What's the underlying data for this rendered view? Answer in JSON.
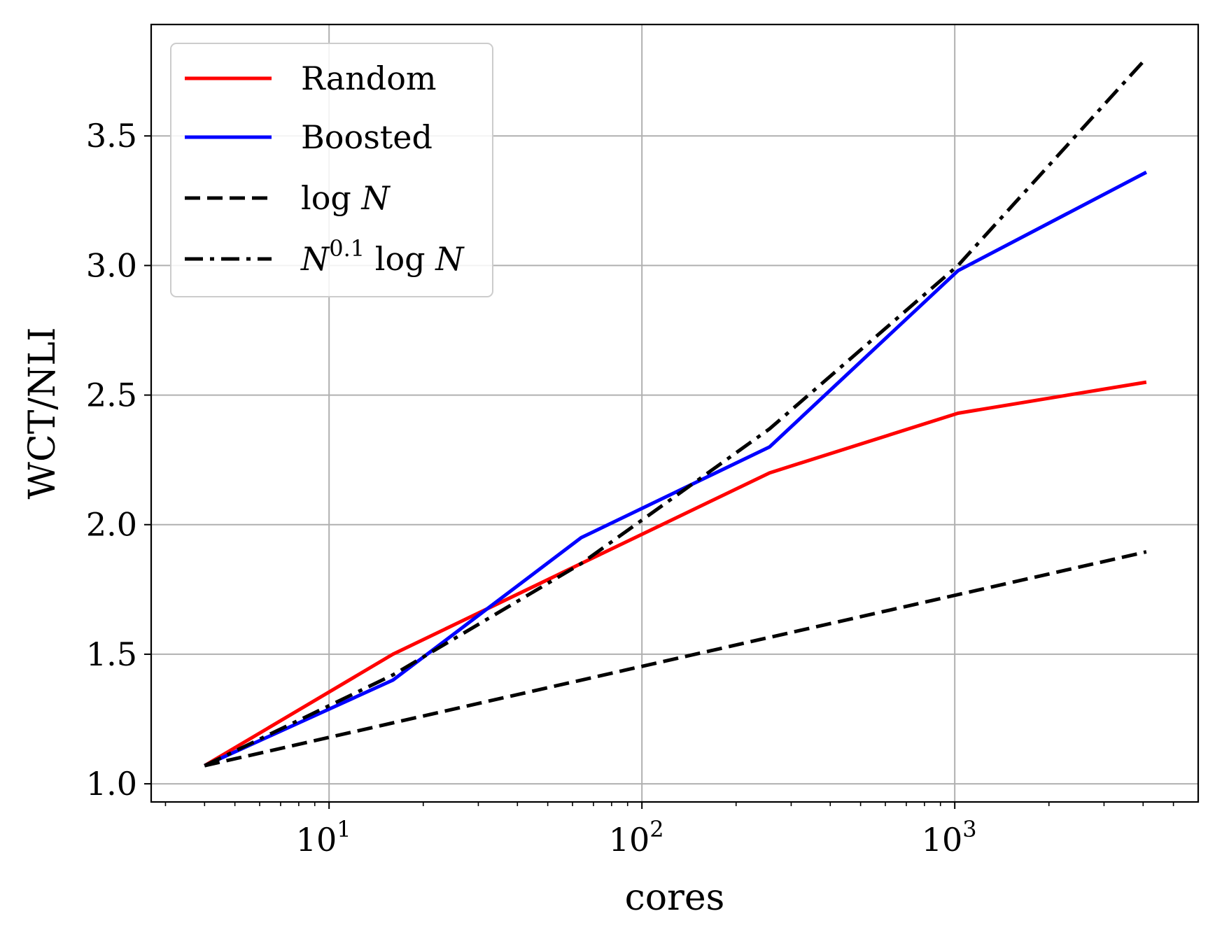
{
  "chart_data": {
    "type": "line",
    "x_scale": "log",
    "xlabel": "cores",
    "ylabel": "WCT/NLI",
    "xlim": [
      2.7,
      6000
    ],
    "ylim": [
      0.93,
      3.93
    ],
    "grid": true,
    "legend_position": "top-left",
    "y_ticks": [
      1.0,
      1.5,
      2.0,
      2.5,
      3.0,
      3.5
    ],
    "y_tick_labels": [
      "1.0",
      "1.5",
      "2.0",
      "2.5",
      "3.0",
      "3.5"
    ],
    "x_major_ticks": [
      {
        "value": 10,
        "base": "10",
        "exp": "1"
      },
      {
        "value": 100,
        "base": "10",
        "exp": "2"
      },
      {
        "value": 1000,
        "base": "10",
        "exp": "3"
      }
    ],
    "x_minor_ticks": [
      3,
      4,
      5,
      6,
      7,
      8,
      9,
      20,
      30,
      40,
      50,
      60,
      70,
      80,
      90,
      200,
      300,
      400,
      500,
      600,
      700,
      800,
      900,
      2000,
      3000,
      4000,
      5000
    ],
    "series": [
      {
        "name": "Random",
        "label_parts": [
          "Random"
        ],
        "color": "#ff0000",
        "dash": "solid",
        "x": [
          4,
          16,
          64,
          256,
          1024,
          4096
        ],
        "y": [
          1.07,
          1.5,
          1.85,
          2.2,
          2.43,
          2.55
        ]
      },
      {
        "name": "Boosted",
        "label_parts": [
          "Boosted"
        ],
        "color": "#0000ff",
        "dash": "solid",
        "x": [
          4,
          16,
          64,
          256,
          1024,
          4096
        ],
        "y": [
          1.07,
          1.4,
          1.95,
          2.3,
          2.98,
          3.36
        ]
      },
      {
        "name": "log N",
        "label_parts": [
          "log ",
          "N"
        ],
        "color": "#000000",
        "dash": "dashed",
        "x": [
          4,
          16,
          64,
          256,
          1024,
          4096
        ],
        "y": [
          1.07,
          1.235,
          1.4,
          1.565,
          1.73,
          1.895
        ]
      },
      {
        "name": "N^0.1 log N",
        "label_parts": [
          "N",
          "0.1",
          " log ",
          "N"
        ],
        "color": "#000000",
        "dash": "dashdot",
        "x": [
          4,
          16,
          64,
          256,
          1024,
          4096
        ],
        "y": [
          1.07,
          1.42,
          1.85,
          2.37,
          3.0,
          3.8
        ]
      }
    ]
  }
}
